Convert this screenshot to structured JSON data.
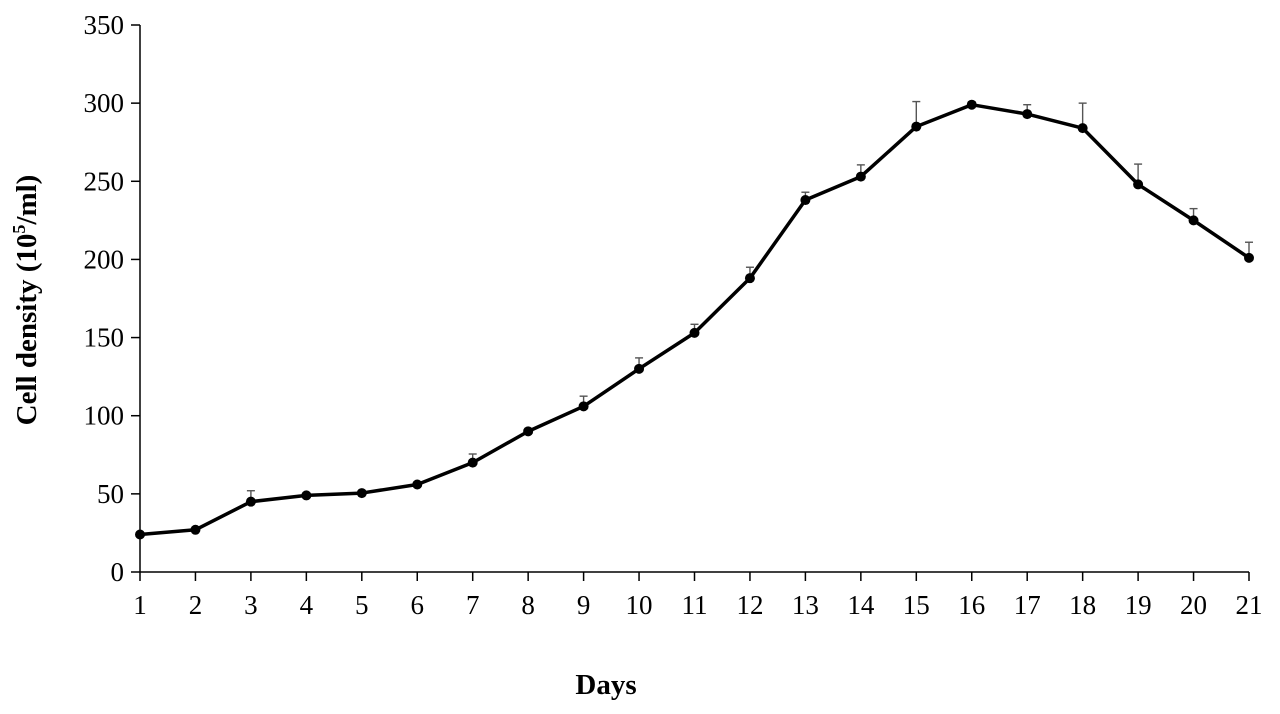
{
  "chart_data": {
    "type": "line",
    "xlabel": "Days",
    "ylabel_main": "Cell density (10",
    "ylabel_sup": "5",
    "ylabel_end": "/ml)",
    "ylim": [
      0,
      350
    ],
    "yticks": [
      0,
      50,
      100,
      150,
      200,
      250,
      300,
      350
    ],
    "grid": false,
    "legend": "none",
    "x": [
      1,
      2,
      3,
      4,
      5,
      6,
      7,
      8,
      9,
      10,
      11,
      12,
      13,
      14,
      15,
      16,
      17,
      18,
      19,
      20,
      21
    ],
    "series": [
      {
        "values": [
          24,
          27,
          45,
          49,
          50.5,
          56,
          70,
          90,
          106,
          130,
          153,
          188,
          238,
          253,
          285,
          299,
          293,
          284,
          248,
          225,
          201
        ],
        "error": [
          1,
          1.5,
          7,
          1.5,
          1.5,
          1.5,
          5.5,
          1.5,
          6.5,
          7,
          5.5,
          7,
          5,
          7.5,
          16,
          1.5,
          6,
          16,
          13,
          7.5,
          10
        ],
        "color": "#000000"
      }
    ]
  }
}
